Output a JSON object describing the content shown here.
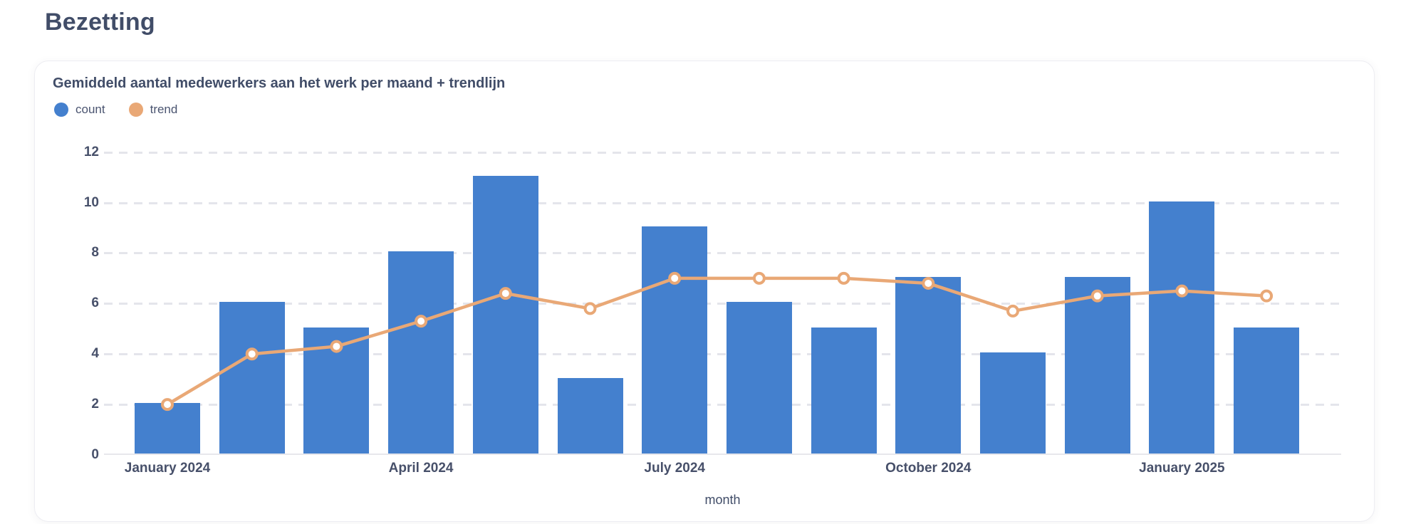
{
  "page": {
    "title": "Bezetting"
  },
  "card": {
    "subtitle": "Gemiddeld aantal medewerkers aan het werk per maand + trendlijn",
    "legend": [
      {
        "label": "count",
        "color": "#4480CE"
      },
      {
        "label": "trend",
        "color": "#E9A876"
      }
    ]
  },
  "chart_data": {
    "type": "bar",
    "title": "Gemiddeld aantal medewerkers aan het werk per maand + trendlijn",
    "categories": [
      "January 2024",
      "February 2024",
      "March 2024",
      "April 2024",
      "May 2024",
      "June 2024",
      "July 2024",
      "August 2024",
      "September 2024",
      "October 2024",
      "November 2024",
      "December 2024",
      "January 2025",
      "February 2025"
    ],
    "series": [
      {
        "name": "count",
        "type": "bar",
        "color": "#4480CE",
        "values": [
          2,
          6,
          5,
          8,
          11,
          3,
          9,
          6,
          5,
          7,
          4,
          7,
          10,
          5
        ]
      },
      {
        "name": "trend",
        "type": "line",
        "color": "#E9A876",
        "values": [
          2,
          4,
          4.3,
          5.3,
          6.4,
          5.8,
          7,
          7,
          7,
          6.8,
          5.7,
          6.3,
          6.5,
          6.3
        ]
      }
    ],
    "xlabel": "month",
    "ylabel": "",
    "y_ticks": [
      0,
      2,
      4,
      6,
      8,
      10,
      12
    ],
    "ylim": [
      0,
      12.6
    ],
    "x_tick_indices": [
      0,
      3,
      6,
      9,
      12
    ],
    "x_tick_labels": [
      "January 2024",
      "April 2024",
      "July 2024",
      "October 2024",
      "January 2025"
    ],
    "grid": "horizontal-dashed",
    "legend_position": "top-left"
  }
}
